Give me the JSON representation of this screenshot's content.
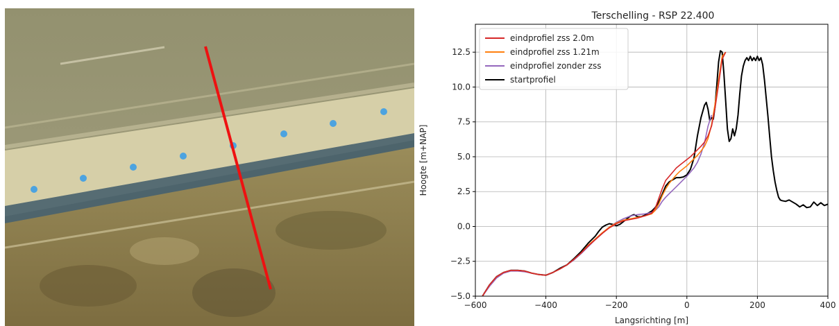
{
  "aerial_photo": {
    "colors": {
      "sea": "#8f8d6d",
      "beach": "#d9d2ac",
      "dunes": "#8f8252",
      "transect": "#ee1111",
      "markers": "#4ca3e0"
    },
    "marker_count": 8
  },
  "chart_data": {
    "type": "line",
    "title": "Terschelling - RSP 22.400",
    "xlabel": "Langsrichting [m]",
    "ylabel": "Hoogte [m+NAP]",
    "xlim": [
      -600,
      400
    ],
    "ylim": [
      -5.0,
      14.5
    ],
    "x_ticks": [
      -600,
      -400,
      -200,
      0,
      200,
      400
    ],
    "x_tick_labels": [
      "−600",
      "−400",
      "−200",
      "0",
      "200",
      "400"
    ],
    "y_ticks": [
      -5.0,
      -2.5,
      0.0,
      2.5,
      5.0,
      7.5,
      10.0,
      12.5
    ],
    "y_tick_labels": [
      "−5.0",
      "−2.5",
      "0.0",
      "2.5",
      "5.0",
      "7.5",
      "10.0",
      "12.5"
    ],
    "grid": true,
    "legend_position": "top-left",
    "series": [
      {
        "name": "eindprofiel zss 2.0m",
        "color": "#d62728",
        "x": [
          -580,
          -560,
          -540,
          -520,
          -500,
          -480,
          -460,
          -440,
          -420,
          -400,
          -380,
          -360,
          -340,
          -320,
          -300,
          -280,
          -260,
          -240,
          -220,
          -200,
          -180,
          -160,
          -140,
          -120,
          -100,
          -90,
          -80,
          -70,
          -60,
          -50,
          -40,
          -30,
          -20,
          -10,
          0,
          10,
          20,
          30,
          40,
          50,
          60,
          70,
          80,
          90,
          100,
          110
        ],
        "y": [
          -5.0,
          -4.2,
          -3.6,
          -3.3,
          -3.15,
          -3.15,
          -3.2,
          -3.35,
          -3.45,
          -3.5,
          -3.3,
          -3.05,
          -2.75,
          -2.35,
          -1.9,
          -1.4,
          -0.95,
          -0.5,
          -0.1,
          0.2,
          0.4,
          0.5,
          0.6,
          0.75,
          0.95,
          1.3,
          2.0,
          2.7,
          3.3,
          3.6,
          3.9,
          4.2,
          4.4,
          4.6,
          4.8,
          5.0,
          5.25,
          5.5,
          5.75,
          6.05,
          6.5,
          7.2,
          8.5,
          10.2,
          12.0,
          12.5
        ]
      },
      {
        "name": "eindprofiel zss 1.21m",
        "color": "#ff7f0e",
        "x": [
          -580,
          -560,
          -540,
          -520,
          -500,
          -480,
          -460,
          -440,
          -420,
          -400,
          -380,
          -360,
          -340,
          -320,
          -300,
          -280,
          -260,
          -240,
          -220,
          -200,
          -180,
          -160,
          -140,
          -120,
          -100,
          -90,
          -80,
          -70,
          -60,
          -50,
          -40,
          -30,
          -20,
          -10,
          0,
          10,
          20,
          30,
          40,
          50,
          60,
          70,
          80,
          90,
          100,
          110
        ],
        "y": [
          -5.0,
          -4.2,
          -3.6,
          -3.3,
          -3.15,
          -3.15,
          -3.2,
          -3.35,
          -3.45,
          -3.5,
          -3.3,
          -3.05,
          -2.75,
          -2.35,
          -1.9,
          -1.35,
          -0.9,
          -0.45,
          -0.05,
          0.25,
          0.45,
          0.55,
          0.65,
          0.75,
          0.9,
          1.15,
          1.6,
          2.2,
          2.7,
          3.1,
          3.4,
          3.7,
          3.95,
          4.15,
          4.35,
          4.6,
          4.85,
          5.1,
          5.4,
          5.75,
          6.3,
          7.3,
          8.8,
          10.5,
          12.2,
          12.5
        ]
      },
      {
        "name": "eindprofiel zonder zss",
        "color": "#9467bd",
        "x": [
          -580,
          -560,
          -540,
          -520,
          -500,
          -480,
          -460,
          -440,
          -420,
          -400,
          -380,
          -360,
          -340,
          -320,
          -300,
          -280,
          -260,
          -240,
          -220,
          -200,
          -180,
          -160,
          -140,
          -120,
          -100,
          -90,
          -80,
          -70,
          -60,
          -50,
          -40,
          -30,
          -20,
          -10,
          0,
          10,
          20,
          30,
          40,
          50,
          60,
          70
        ],
        "y": [
          -5.0,
          -4.3,
          -3.7,
          -3.35,
          -3.2,
          -3.2,
          -3.25,
          -3.35,
          -3.45,
          -3.5,
          -3.3,
          -3.05,
          -2.75,
          -2.4,
          -1.95,
          -1.45,
          -0.95,
          -0.5,
          -0.05,
          0.3,
          0.55,
          0.75,
          0.85,
          0.9,
          1.0,
          1.15,
          1.4,
          1.8,
          2.1,
          2.35,
          2.6,
          2.85,
          3.1,
          3.35,
          3.6,
          3.9,
          4.2,
          4.6,
          5.2,
          6.0,
          7.2,
          8.0
        ]
      },
      {
        "name": "startprofiel",
        "color": "#000000",
        "x": [
          -580,
          -560,
          -540,
          -520,
          -500,
          -480,
          -460,
          -440,
          -420,
          -400,
          -380,
          -360,
          -340,
          -320,
          -300,
          -280,
          -260,
          -250,
          -240,
          -230,
          -220,
          -210,
          -200,
          -190,
          -180,
          -170,
          -160,
          -150,
          -140,
          -130,
          -120,
          -110,
          -100,
          -90,
          -80,
          -70,
          -60,
          -50,
          -40,
          -30,
          -20,
          -10,
          0,
          10,
          20,
          30,
          40,
          50,
          55,
          60,
          65,
          70,
          75,
          80,
          85,
          90,
          95,
          100,
          105,
          110,
          115,
          120,
          125,
          130,
          135,
          140,
          145,
          150,
          155,
          160,
          165,
          170,
          175,
          180,
          185,
          190,
          195,
          200,
          205,
          210,
          215,
          220,
          225,
          230,
          235,
          240,
          245,
          250,
          255,
          260,
          265,
          270,
          280,
          290,
          300,
          310,
          320,
          330,
          340,
          350,
          360,
          370,
          380,
          390,
          400
        ],
        "y": [
          -5.0,
          -4.2,
          -3.6,
          -3.3,
          -3.15,
          -3.15,
          -3.2,
          -3.35,
          -3.45,
          -3.5,
          -3.3,
          -3.0,
          -2.75,
          -2.3,
          -1.8,
          -1.2,
          -0.7,
          -0.35,
          -0.05,
          0.1,
          0.2,
          0.15,
          0.05,
          0.15,
          0.35,
          0.55,
          0.75,
          0.85,
          0.7,
          0.7,
          0.8,
          0.95,
          1.1,
          1.35,
          1.75,
          2.3,
          2.9,
          3.2,
          3.35,
          3.5,
          3.5,
          3.55,
          3.7,
          4.1,
          4.9,
          6.5,
          7.8,
          8.7,
          8.9,
          8.4,
          7.6,
          7.8,
          7.7,
          8.6,
          10.2,
          11.8,
          12.6,
          12.5,
          11.0,
          9.0,
          7.0,
          6.1,
          6.3,
          7.0,
          6.5,
          7.0,
          8.0,
          9.5,
          10.8,
          11.5,
          11.9,
          12.1,
          11.9,
          12.2,
          11.9,
          12.1,
          11.9,
          12.2,
          11.9,
          12.1,
          11.6,
          10.5,
          9.2,
          7.9,
          6.4,
          5.0,
          4.0,
          3.2,
          2.6,
          2.1,
          1.9,
          1.85,
          1.8,
          1.9,
          1.75,
          1.6,
          1.4,
          1.55,
          1.35,
          1.4,
          1.75,
          1.5,
          1.7,
          1.5,
          1.6
        ]
      }
    ]
  }
}
